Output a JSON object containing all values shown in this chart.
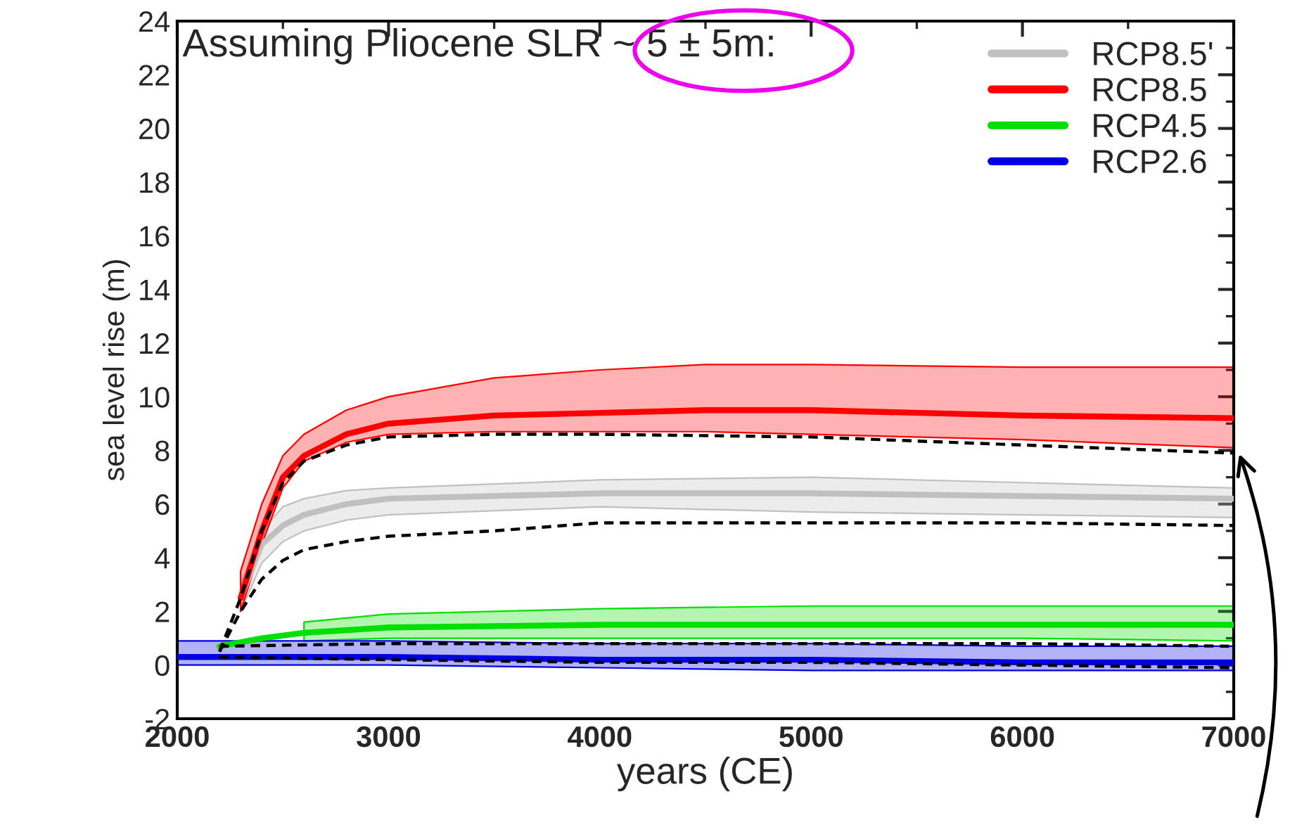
{
  "chart_data": {
    "type": "line",
    "xlabel": "years (CE)",
    "ylabel": "sea level rise (m)",
    "annotations": [
      "Assuming Pliocene SLR ~ 5 ± 5m:"
    ],
    "xlim": [
      2000,
      7000
    ],
    "xticks": [
      2000,
      3000,
      4000,
      5000,
      6000,
      7000
    ],
    "ylim": [
      -2,
      24
    ],
    "yticks": [
      -2,
      0,
      2,
      4,
      6,
      8,
      10,
      12,
      14,
      16,
      18,
      20,
      22,
      24
    ],
    "grid": false,
    "legend": "top right",
    "line_style": "solid",
    "marker": "none",
    "series": [
      {
        "name": "RCP8.5'",
        "color": "#c0c0c0",
        "x": [
          2300,
          2400,
          2500,
          2600,
          2800,
          3000,
          4000,
          5000,
          6000,
          7000
        ],
        "values": [
          2.5,
          4.5,
          5.2,
          5.6,
          6.0,
          6.2,
          6.4,
          6.4,
          6.3,
          6.2
        ],
        "lower": [
          2.0,
          3.8,
          4.6,
          5.0,
          5.4,
          5.6,
          5.9,
          5.7,
          5.6,
          5.5
        ],
        "upper": [
          3.0,
          5.0,
          5.9,
          6.2,
          6.5,
          6.6,
          6.9,
          7.0,
          6.8,
          6.6
        ]
      },
      {
        "name": "RCP8.5",
        "color": "#ff0000",
        "x": [
          2300,
          2400,
          2500,
          2600,
          2800,
          3000,
          3500,
          4000,
          4500,
          5000,
          6000,
          7000
        ],
        "values": [
          2.5,
          5.0,
          7.0,
          7.8,
          8.6,
          9.0,
          9.3,
          9.4,
          9.5,
          9.5,
          9.3,
          9.2
        ],
        "lower": [
          2.0,
          4.5,
          6.6,
          7.6,
          8.3,
          8.6,
          8.7,
          8.7,
          8.7,
          8.6,
          8.4,
          8.1
        ],
        "upper": [
          3.5,
          6.0,
          7.8,
          8.6,
          9.5,
          10.0,
          10.7,
          11.0,
          11.2,
          11.2,
          11.1,
          11.1
        ]
      },
      {
        "name": "RCP4.5",
        "color": "#00e000",
        "x": [
          2200,
          2400,
          2600,
          3000,
          4000,
          5000,
          6000,
          7000
        ],
        "values": [
          0.7,
          1.0,
          1.2,
          1.4,
          1.5,
          1.5,
          1.5,
          1.5
        ],
        "lower": [
          null,
          null,
          0.9,
          1.0,
          1.0,
          1.0,
          1.0,
          0.9
        ],
        "upper": [
          null,
          null,
          1.6,
          1.9,
          2.1,
          2.2,
          2.2,
          2.2
        ]
      },
      {
        "name": "RCP2.6",
        "color": "#0000e0",
        "x": [
          2000,
          2200,
          3000,
          4000,
          5000,
          6000,
          7000
        ],
        "values": [
          0.3,
          0.3,
          0.3,
          0.2,
          0.2,
          0.1,
          0.1
        ],
        "lower": [
          0.0,
          0.0,
          0.0,
          -0.1,
          -0.2,
          -0.2,
          -0.2
        ],
        "upper": [
          0.9,
          0.9,
          0.9,
          0.8,
          0.8,
          0.7,
          0.7
        ]
      },
      {
        "color": "#000000",
        "line_style": "dashed",
        "x": [
          2200,
          2300,
          2400,
          2500,
          2600,
          2800,
          3000,
          3500,
          4000,
          5000,
          6000,
          7000
        ],
        "values": [
          0.5,
          2.5,
          5.0,
          6.8,
          7.6,
          8.2,
          8.5,
          8.6,
          8.6,
          8.5,
          8.2,
          7.9
        ]
      },
      {
        "color": "#000000",
        "line_style": "dashed",
        "x": [
          2200,
          2300,
          2400,
          2500,
          2600,
          2800,
          3000,
          3500,
          4000,
          5000,
          6000,
          7000
        ],
        "values": [
          0.5,
          2.0,
          3.2,
          3.9,
          4.3,
          4.6,
          4.8,
          5.0,
          5.3,
          5.3,
          5.3,
          5.2
        ]
      },
      {
        "color": "#000000",
        "line_style": "dashed",
        "x": [
          2200,
          3000,
          4000,
          5000,
          6000,
          7000
        ],
        "values": [
          0.7,
          0.8,
          0.8,
          0.8,
          0.8,
          0.7
        ]
      },
      {
        "color": "#000000",
        "line_style": "dashed",
        "x": [
          2200,
          3000,
          4000,
          5000,
          6000,
          7000
        ],
        "values": [
          0.3,
          0.2,
          0.1,
          0.1,
          0.0,
          -0.1
        ]
      }
    ]
  }
}
